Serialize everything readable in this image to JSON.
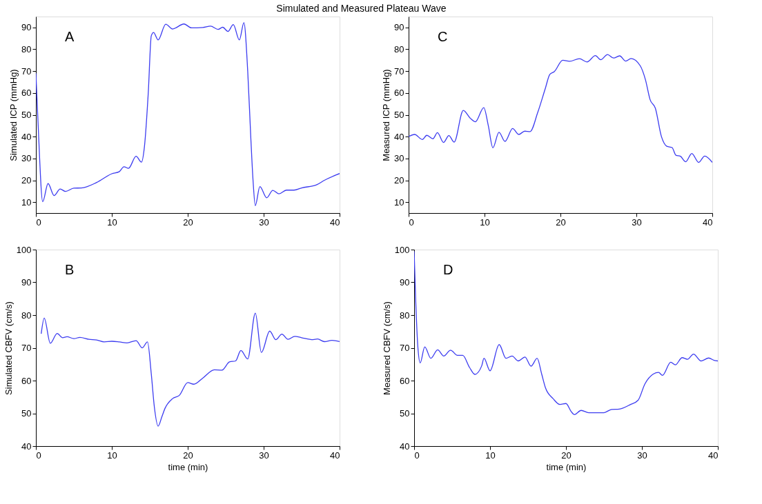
{
  "chart_data": [
    {
      "type": "line",
      "title": "Simulated and Measured Plateau Wave",
      "ylabel": "Simulated ICP (mmHg)",
      "annotations": [
        "A"
      ],
      "color": "#3c3cf0",
      "grid": false,
      "xlim": [
        0,
        40
      ],
      "xticks": [
        0,
        10,
        20,
        30,
        40
      ],
      "ylim": [
        5,
        95
      ],
      "yticks": [
        10,
        20,
        30,
        40,
        50,
        60,
        70,
        80,
        90
      ],
      "x": [
        0,
        0.3,
        0.9,
        1.6,
        2.4,
        3.2,
        3.9,
        5,
        6,
        8,
        10,
        11,
        11.6,
        12.2,
        13.2,
        13.9,
        14.3,
        14.8,
        15.2,
        15.5,
        16.1,
        17.1,
        18,
        19.5,
        20.5,
        22,
        23,
        24,
        24.6,
        25.3,
        26,
        26.8,
        27.4,
        27.9,
        28.3,
        28.6,
        28.9,
        29.5,
        30.4,
        31.2,
        32,
        33,
        34,
        35,
        37,
        38,
        40
      ],
      "values": [
        69,
        45,
        10.2,
        18.5,
        13,
        16,
        14.9,
        16.4,
        16.5,
        19,
        23,
        24,
        26.2,
        25.5,
        31,
        28.3,
        35.5,
        60,
        86.2,
        87.7,
        84.3,
        91.5,
        89.3,
        91.6,
        89.8,
        90,
        90.6,
        89.1,
        90.1,
        88.2,
        91.3,
        84.3,
        92.2,
        70,
        40,
        20,
        8.4,
        17.1,
        12,
        15.4,
        13.8,
        15.5,
        15.5,
        16.5,
        18,
        20,
        23.1
      ]
    },
    {
      "type": "line",
      "ylabel": "Measured ICP (mmHg)",
      "annotations": [
        "C"
      ],
      "color": "#3c3cf0",
      "grid": false,
      "xlim": [
        0,
        40
      ],
      "xticks": [
        0,
        10,
        20,
        30,
        40
      ],
      "ylim": [
        5,
        95
      ],
      "yticks": [
        10,
        20,
        30,
        40,
        50,
        60,
        70,
        80,
        90
      ],
      "x": [
        0,
        0.8,
        1.8,
        2.4,
        3.2,
        3.8,
        4.6,
        5.3,
        6,
        7.2,
        8.1,
        8.8,
        9.9,
        10.5,
        11.1,
        11.9,
        12.7,
        13.7,
        14.5,
        15.3,
        16,
        17,
        18,
        18.6,
        19.2,
        20.3,
        21.2,
        22.5,
        23.5,
        24.6,
        25.3,
        26.2,
        27,
        27.8,
        28.6,
        29.3,
        30.5,
        31.2,
        31.8,
        32.5,
        33.3,
        34,
        34.7,
        35.2,
        35.8,
        36.5,
        37.3,
        38.2,
        39,
        40
      ],
      "values": [
        40,
        41,
        38.7,
        40.6,
        39,
        41.8,
        37.3,
        40.5,
        37.5,
        52,
        48.5,
        46.8,
        53.3,
        45,
        34.9,
        42,
        37.8,
        43.7,
        41,
        42.5,
        42.3,
        51,
        62,
        68.5,
        69.8,
        75,
        74.5,
        75.7,
        74.2,
        77.1,
        75.2,
        77.6,
        76,
        77,
        74.6,
        75.8,
        72.5,
        66,
        57,
        53,
        40,
        35.6,
        35,
        31.5,
        31,
        28.5,
        32.3,
        28.2,
        31.1,
        28.2
      ]
    },
    {
      "type": "line",
      "xlabel": "time (min)",
      "ylabel": "Simulated CBFV (cm/s)",
      "annotations": [
        "B"
      ],
      "color": "#3c3cf0",
      "grid": false,
      "xlim": [
        0,
        40
      ],
      "xticks": [
        0,
        10,
        20,
        30,
        40
      ],
      "ylim": [
        40,
        100
      ],
      "yticks": [
        40,
        50,
        60,
        70,
        80,
        90,
        100
      ],
      "x": [
        0.7,
        1.1,
        1.9,
        2.8,
        3.5,
        4.1,
        5,
        5.8,
        7,
        8,
        9,
        10,
        11,
        12,
        13.2,
        14,
        14.7,
        15.2,
        15.6,
        16.1,
        16.6,
        17,
        18,
        18.9,
        20,
        20.8,
        22,
        23.5,
        24.5,
        25.5,
        26.3,
        27,
        27.9,
        28.9,
        29.7,
        30.8,
        31.6,
        32.4,
        33.2,
        34.1,
        35,
        36.5,
        37.1,
        38,
        39,
        40
      ],
      "values": [
        74.3,
        79.1,
        71.4,
        74.4,
        73.1,
        73.4,
        72.8,
        73.2,
        72.6,
        72.4,
        71.8,
        72,
        71.8,
        71.5,
        72.2,
        70,
        71.8,
        62,
        52,
        46.1,
        49,
        51.5,
        54.5,
        55.5,
        59.4,
        58.9,
        60.8,
        63.3,
        63.2,
        65.7,
        66,
        69.2,
        66.6,
        80.6,
        68.6,
        75.1,
        72.5,
        74.2,
        72.6,
        73.5,
        73.1,
        72.5,
        72.7,
        71.9,
        72.3,
        71.9
      ]
    },
    {
      "type": "line",
      "xlabel": "time (min)",
      "ylabel": "Measured CBFV (cm/s)",
      "annotations": [
        "D"
      ],
      "color": "#3c3cf0",
      "grid": false,
      "xlim": [
        0,
        40
      ],
      "xticks": [
        0,
        10,
        20,
        30,
        40
      ],
      "ylim": [
        40,
        100
      ],
      "yticks": [
        40,
        50,
        60,
        70,
        80,
        90,
        100
      ],
      "x": [
        0,
        0.2,
        0.5,
        0.8,
        1.4,
        2.2,
        3.1,
        3.9,
        4.8,
        5.7,
        6.4,
        7.3,
        8,
        8.9,
        9.2,
        10,
        11.2,
        12.1,
        12.9,
        13.7,
        14.6,
        15.4,
        16.2,
        16.8,
        17.3,
        18.3,
        19.2,
        20,
        20.7,
        21.1,
        22,
        23,
        25,
        26,
        27,
        28.5,
        29.5,
        30.4,
        31.5,
        32.2,
        32.7,
        33.8,
        34.4,
        35.3,
        36,
        36.8,
        37.8,
        38.8,
        39.5,
        40
      ],
      "values": [
        99.5,
        85,
        70,
        65.4,
        70.3,
        66.8,
        69.4,
        67.5,
        69.3,
        67.7,
        67.7,
        64,
        61.9,
        64.5,
        66.8,
        63,
        71,
        66.8,
        67.5,
        66,
        67.2,
        64.4,
        66.8,
        62,
        57.8,
        54.5,
        52.7,
        53,
        50.5,
        49.6,
        50.9,
        50.2,
        50.2,
        51.2,
        51.3,
        52.7,
        54,
        59,
        62,
        62.5,
        61.6,
        65.6,
        64.8,
        67,
        66.5,
        68.1,
        66,
        66.9,
        66.2,
        66
      ]
    }
  ]
}
